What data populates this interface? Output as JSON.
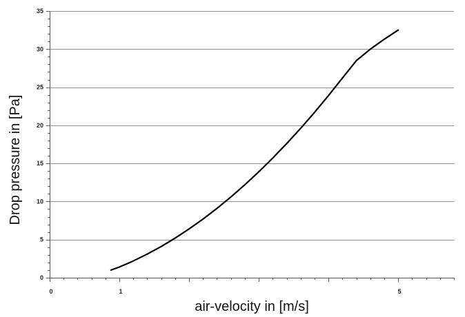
{
  "chart_data": {
    "type": "line",
    "title": "",
    "xlabel": "air-velocity in [m/s]",
    "ylabel": "Drop pressure in [Pa]",
    "xlim": [
      0,
      5.8
    ],
    "ylim": [
      0,
      35
    ],
    "grid": {
      "y_major": true,
      "x_major": false
    },
    "x_ticks": [
      0,
      1,
      5
    ],
    "x_minor_step": 0.2,
    "x_unlabeled_major_ticks": [
      2,
      3,
      4
    ],
    "y_ticks": [
      0,
      5,
      10,
      15,
      20,
      25,
      30,
      35
    ],
    "y_minor_step": 1,
    "series": [
      {
        "color": "#000000",
        "x": [
          0.88,
          1.0,
          1.2,
          1.4,
          1.6,
          1.8,
          2.0,
          2.2,
          2.4,
          2.6,
          2.8,
          3.0,
          3.2,
          3.4,
          3.6,
          3.8,
          4.0,
          4.2,
          4.4,
          4.6,
          4.8,
          5.0
        ],
        "y": [
          1.0,
          1.4,
          2.2,
          3.1,
          4.1,
          5.2,
          6.4,
          7.7,
          9.1,
          10.6,
          12.2,
          13.9,
          15.7,
          17.6,
          19.6,
          21.7,
          23.9,
          26.2,
          28.5,
          30.0,
          31.3,
          32.5
        ]
      }
    ]
  }
}
